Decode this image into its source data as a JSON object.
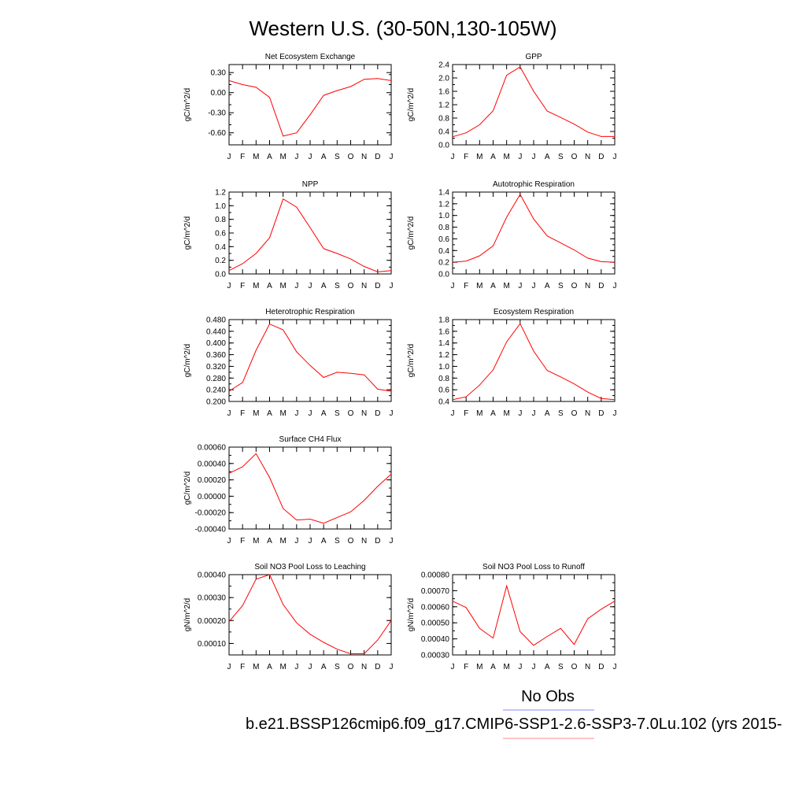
{
  "title": "Western U.S. (30-50N,130-105W)",
  "months": [
    "J",
    "F",
    "M",
    "A",
    "M",
    "J",
    "J",
    "A",
    "S",
    "O",
    "N",
    "D",
    "J"
  ],
  "series_color": "#ff0000",
  "legend": {
    "obs_label": "No Obs",
    "obs_color": "#8888ff",
    "model_label": "b.e21.BSSP126cmip6.f09_g17.CMIP6-SSP1-2.6-SSP3-7.0Lu.102 (yrs 2015-",
    "model_color": "#ff8888"
  },
  "chart_data": [
    {
      "type": "line",
      "title": "Net Ecosystem Exchange",
      "ylabel": "gC/m^2/d",
      "ylim": [
        -0.78,
        0.42
      ],
      "yticks": [
        -0.6,
        -0.3,
        0.0,
        0.3
      ],
      "ytick_labels": [
        "-0.60",
        "-0.30",
        "0.00",
        "0.30"
      ],
      "values": [
        0.18,
        0.12,
        0.08,
        -0.07,
        -0.65,
        -0.6,
        -0.33,
        -0.04,
        0.03,
        0.09,
        0.2,
        0.21,
        0.18
      ]
    },
    {
      "type": "line",
      "title": "GPP",
      "ylabel": "gC/m^2/d",
      "ylim": [
        0.0,
        2.4
      ],
      "yticks": [
        0.0,
        0.4,
        0.8,
        1.2,
        1.6,
        2.0,
        2.4
      ],
      "ytick_labels": [
        "0.0",
        "0.4",
        "0.8",
        "1.2",
        "1.6",
        "2.0",
        "2.4"
      ],
      "values": [
        0.24,
        0.36,
        0.6,
        1.02,
        2.08,
        2.33,
        1.6,
        1.01,
        0.82,
        0.62,
        0.38,
        0.25,
        0.25
      ]
    },
    {
      "type": "line",
      "title": "NPP",
      "ylabel": "gC/m^2/d",
      "ylim": [
        0.0,
        1.2
      ],
      "yticks": [
        0.0,
        0.2,
        0.4,
        0.6,
        0.8,
        1.0,
        1.2
      ],
      "ytick_labels": [
        "0.0",
        "0.2",
        "0.4",
        "0.6",
        "0.8",
        "1.0",
        "1.2"
      ],
      "values": [
        0.05,
        0.15,
        0.3,
        0.53,
        1.1,
        0.98,
        0.68,
        0.37,
        0.3,
        0.22,
        0.11,
        0.03,
        0.05
      ]
    },
    {
      "type": "line",
      "title": "Autotrophic Respiration",
      "ylabel": "gC/m^2/d",
      "ylim": [
        0.0,
        1.4
      ],
      "yticks": [
        0.0,
        0.2,
        0.4,
        0.6,
        0.8,
        1.0,
        1.2,
        1.4
      ],
      "ytick_labels": [
        "0.0",
        "0.2",
        "0.4",
        "0.6",
        "0.8",
        "1.0",
        "1.2",
        "1.4"
      ],
      "values": [
        0.2,
        0.22,
        0.31,
        0.48,
        0.97,
        1.36,
        0.94,
        0.65,
        0.53,
        0.41,
        0.27,
        0.21,
        0.2
      ]
    },
    {
      "type": "line",
      "title": "Heterotrophic Respiration",
      "ylabel": "gC/m^2/d",
      "ylim": [
        0.2,
        0.48
      ],
      "yticks": [
        0.2,
        0.24,
        0.28,
        0.32,
        0.36,
        0.4,
        0.44,
        0.48
      ],
      "ytick_labels": [
        "0.200",
        "0.240",
        "0.280",
        "0.320",
        "0.360",
        "0.400",
        "0.440",
        "0.480"
      ],
      "values": [
        0.235,
        0.265,
        0.375,
        0.465,
        0.445,
        0.37,
        0.323,
        0.282,
        0.3,
        0.296,
        0.291,
        0.242,
        0.235
      ]
    },
    {
      "type": "line",
      "title": "Ecosystem Respiration",
      "ylabel": "gC/m^2/d",
      "ylim": [
        0.4,
        1.8
      ],
      "yticks": [
        0.4,
        0.6,
        0.8,
        1.0,
        1.2,
        1.4,
        1.6,
        1.8
      ],
      "ytick_labels": [
        "0.4",
        "0.6",
        "0.8",
        "1.0",
        "1.2",
        "1.4",
        "1.6",
        "1.8"
      ],
      "values": [
        0.43,
        0.48,
        0.68,
        0.94,
        1.42,
        1.73,
        1.26,
        0.93,
        0.82,
        0.7,
        0.56,
        0.45,
        0.43
      ]
    },
    {
      "type": "line",
      "title": "Surface CH4 Flux",
      "ylabel": "gC/m^2/d",
      "ylim": [
        -0.0004,
        0.0006
      ],
      "yticks": [
        -0.0004,
        -0.0002,
        0.0,
        0.0002,
        0.0004,
        0.0006
      ],
      "ytick_labels": [
        "-0.00040",
        "-0.00020",
        "0.00000",
        "0.00020",
        "0.00040",
        "0.00060"
      ],
      "values": [
        0.00028,
        0.00036,
        0.00052,
        0.00023,
        -0.00015,
        -0.00029,
        -0.00028,
        -0.00033,
        -0.00026,
        -0.00019,
        -5e-05,
        0.00012,
        0.00027
      ]
    },
    {
      "type": "line",
      "title": "Soil NO3 Pool Loss to Leaching",
      "ylabel": "gN/m^2/d",
      "ylim": [
        5e-05,
        0.0004
      ],
      "yticks": [
        0.0001,
        0.0002,
        0.0003,
        0.0004
      ],
      "ytick_labels": [
        "0.00010",
        "0.00020",
        "0.00030",
        "0.00040"
      ],
      "values": [
        0.000195,
        0.000265,
        0.00038,
        0.0004,
        0.00027,
        0.00019,
        0.00014,
        0.000105,
        7.5e-05,
        5.5e-05,
        5.5e-05,
        0.000115,
        0.0002
      ]
    },
    {
      "type": "line",
      "title": "Soil NO3 Pool Loss to Runoff",
      "ylabel": "gN/m^2/d",
      "ylim": [
        0.0003,
        0.0008
      ],
      "yticks": [
        0.0003,
        0.0004,
        0.0005,
        0.0006,
        0.0007,
        0.0008
      ],
      "ytick_labels": [
        "0.00030",
        "0.00040",
        "0.00050",
        "0.00060",
        "0.00070",
        "0.00080"
      ],
      "values": [
        0.000635,
        0.000595,
        0.000465,
        0.000405,
        0.00073,
        0.000445,
        0.00036,
        0.000415,
        0.000465,
        0.000365,
        0.000525,
        0.000585,
        0.000635
      ]
    }
  ]
}
